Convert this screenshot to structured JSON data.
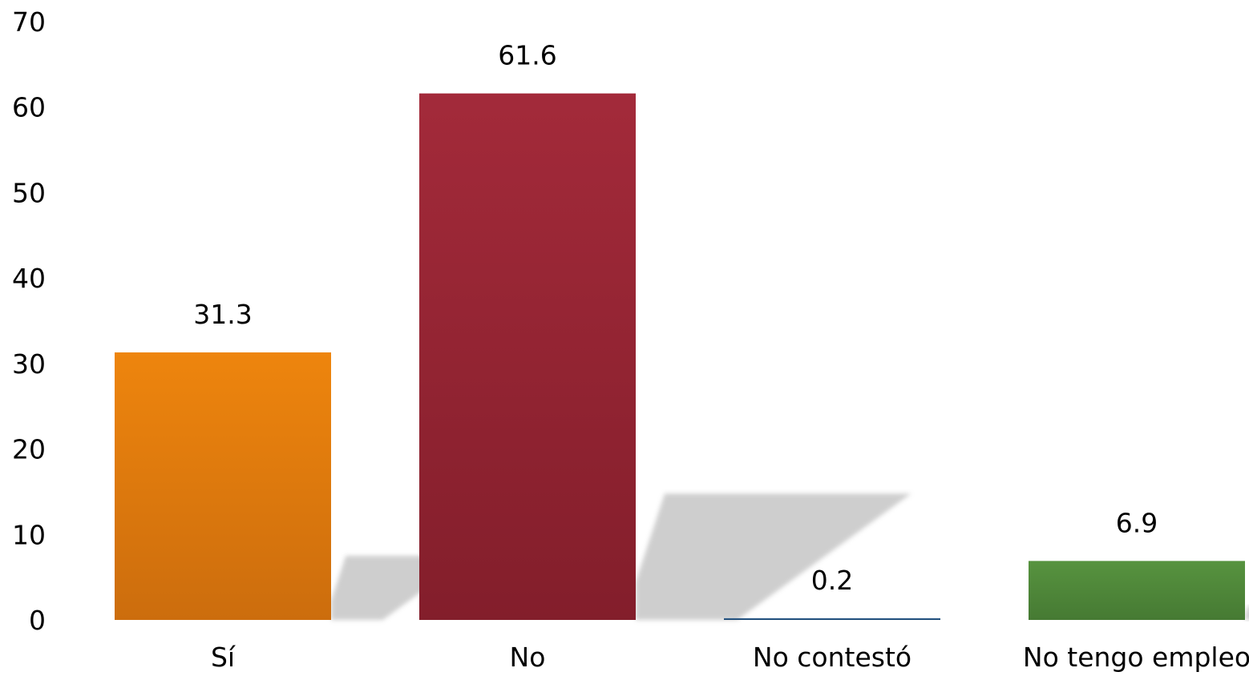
{
  "chart_data": {
    "type": "bar",
    "categories": [
      "Sí",
      "No",
      "No contestó",
      "No tengo empleo"
    ],
    "values": [
      31.3,
      61.6,
      0.2,
      6.9
    ],
    "data_labels": [
      "31.3",
      "61.6",
      "0.2",
      "6.9"
    ],
    "title": "",
    "xlabel": "",
    "ylabel": "",
    "ylim": [
      0,
      70
    ],
    "yticks": [
      "0",
      "10",
      "20",
      "30",
      "40",
      "50",
      "60",
      "70"
    ],
    "grid": false,
    "legend": "none",
    "colors": [
      {
        "top": "#ee850d",
        "bottom": "#cc6d0d"
      },
      {
        "top": "#a32a3a",
        "bottom": "#831e2b"
      },
      {
        "top": "#2a5a8a",
        "bottom": "#1f4a74"
      },
      {
        "top": "#57933f",
        "bottom": "#467a33"
      }
    ],
    "shadow_color": "#c9c9c9"
  }
}
